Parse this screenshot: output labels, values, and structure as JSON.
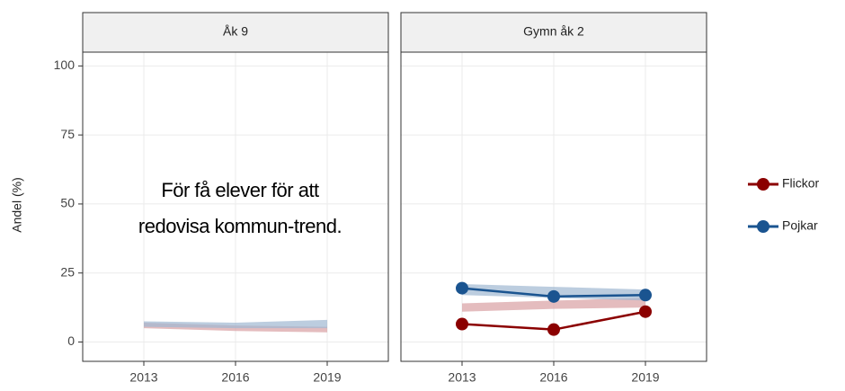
{
  "chart_data": [
    {
      "type": "line",
      "title": "Åk 9",
      "ylabel": "Andel (%)",
      "x": [
        2013,
        2016,
        2019
      ],
      "xlim": [
        2011,
        2021
      ],
      "xticks": [
        2013,
        2016,
        2019
      ],
      "ylim": [
        -7,
        105
      ],
      "yticks": [
        0,
        25,
        50,
        75,
        100
      ],
      "grid": true,
      "annotation": [
        "För få elever för att",
        "redovisa kommun-trend."
      ],
      "series": [
        {
          "name": "Flickor",
          "color": "#8b0000",
          "band_color": "#d9a0a3",
          "band_low": [
            5,
            4,
            3.5
          ],
          "band_high": [
            7,
            6,
            5.5
          ]
        },
        {
          "name": "Pojkar",
          "color": "#1a5490",
          "band_color": "#9fb8d2",
          "band_low": [
            5.5,
            5,
            5
          ],
          "band_high": [
            7.5,
            7,
            8
          ]
        }
      ]
    },
    {
      "type": "line",
      "title": "Gymn åk 2",
      "x": [
        2013,
        2016,
        2019
      ],
      "xlim": [
        2011,
        2021
      ],
      "xticks": [
        2013,
        2016,
        2019
      ],
      "ylim": [
        -7,
        105
      ],
      "yticks": [
        0,
        25,
        50,
        75,
        100
      ],
      "grid": true,
      "legend": "right",
      "series": [
        {
          "name": "Flickor",
          "color": "#8b0000",
          "band_color": "#d9a0a3",
          "values": [
            6.5,
            4.5,
            11
          ],
          "band_low": [
            11,
            12,
            12.5
          ],
          "band_high": [
            14,
            15,
            16
          ]
        },
        {
          "name": "Pojkar",
          "color": "#1a5490",
          "band_color": "#9fb8d2",
          "values": [
            19.5,
            16.5,
            17
          ],
          "band_low": [
            17,
            16,
            15
          ],
          "band_high": [
            21,
            20,
            19
          ]
        }
      ]
    }
  ]
}
